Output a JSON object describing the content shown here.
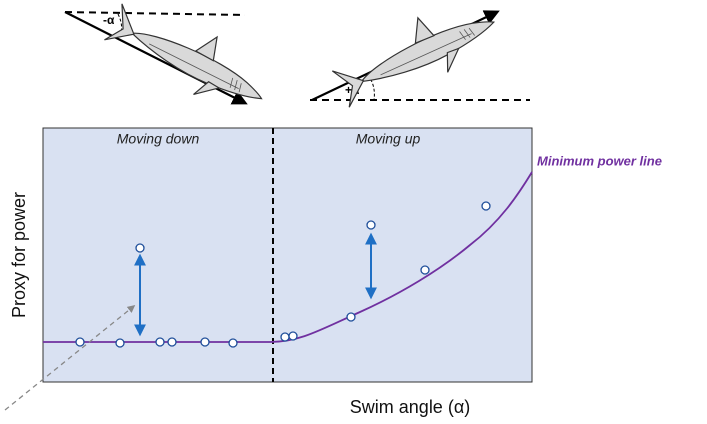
{
  "angle_labels": {
    "down": "-α",
    "up": "+α"
  },
  "regions": {
    "down": "Moving down",
    "up": "Moving up"
  },
  "curve_label": "Minimum power line",
  "axes": {
    "y": "Proxy for power",
    "x": "Swim angle (α)"
  }
}
